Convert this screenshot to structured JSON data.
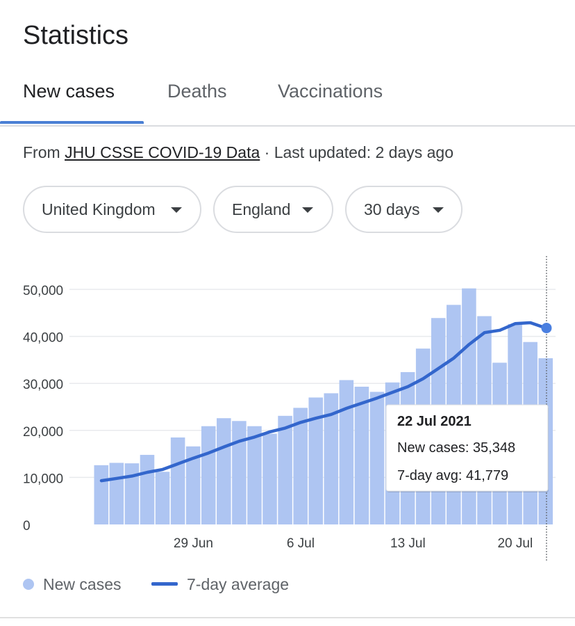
{
  "page_title": "Statistics",
  "tabs": [
    {
      "label": "New cases",
      "active": true
    },
    {
      "label": "Deaths",
      "active": false
    },
    {
      "label": "Vaccinations",
      "active": false
    }
  ],
  "source": {
    "prefix": "From ",
    "link_text": "JHU CSSE COVID-19 Data",
    "suffix": " · Last updated: 2 days ago"
  },
  "filters": {
    "region": "United Kingdom",
    "subregion": "England",
    "period": "30 days"
  },
  "colors": {
    "bar": "#aec5f2",
    "line": "#3366cc",
    "grid": "#e8eaed",
    "accent": "#4a7fd4"
  },
  "chart_data": {
    "type": "bar",
    "x": [
      "23 Jun",
      "24 Jun",
      "25 Jun",
      "26 Jun",
      "27 Jun",
      "28 Jun",
      "29 Jun",
      "30 Jun",
      "1 Jul",
      "2 Jul",
      "3 Jul",
      "4 Jul",
      "5 Jul",
      "6 Jul",
      "7 Jul",
      "8 Jul",
      "9 Jul",
      "10 Jul",
      "11 Jul",
      "12 Jul",
      "13 Jul",
      "14 Jul",
      "15 Jul",
      "16 Jul",
      "17 Jul",
      "18 Jul",
      "19 Jul",
      "20 Jul",
      "21 Jul",
      "22 Jul"
    ],
    "series": [
      {
        "name": "New cases",
        "type": "bar",
        "values": [
          12600,
          13100,
          13000,
          14800,
          11200,
          18500,
          16600,
          20900,
          22600,
          22000,
          20900,
          19300,
          23100,
          24800,
          27000,
          27900,
          30700,
          29300,
          28200,
          30200,
          32400,
          37400,
          43900,
          46700,
          50200,
          44300,
          34400,
          42600,
          38800,
          35348
        ]
      },
      {
        "name": "7-day average",
        "type": "line",
        "values": [
          9300,
          9800,
          10300,
          11100,
          11700,
          12900,
          14100,
          15200,
          16500,
          17700,
          18600,
          19700,
          20500,
          21700,
          22600,
          23400,
          24700,
          25800,
          26900,
          28100,
          29300,
          31000,
          33200,
          35400,
          38300,
          40800,
          41300,
          42700,
          42900,
          41779
        ]
      }
    ],
    "y_ticks": [
      0,
      10000,
      20000,
      30000,
      40000,
      50000
    ],
    "y_tick_labels": [
      "0",
      "10,000",
      "20,000",
      "30,000",
      "40,000",
      "50,000"
    ],
    "x_tick_labels": [
      {
        "label": "29 Jun",
        "index": 6
      },
      {
        "label": "6 Jul",
        "index": 13
      },
      {
        "label": "13 Jul",
        "index": 20
      },
      {
        "label": "20 Jul",
        "index": 27
      }
    ],
    "ylim": [
      0,
      55000
    ],
    "grid": true,
    "legend_position": "bottom-left",
    "tooltip": {
      "index": 29,
      "date": "22 Jul 2021",
      "cases_line": "New cases: 35,348",
      "avg_line": "7-day avg: 41,779"
    }
  },
  "legend": [
    {
      "label": "New cases"
    },
    {
      "label": "7-day average"
    }
  ]
}
